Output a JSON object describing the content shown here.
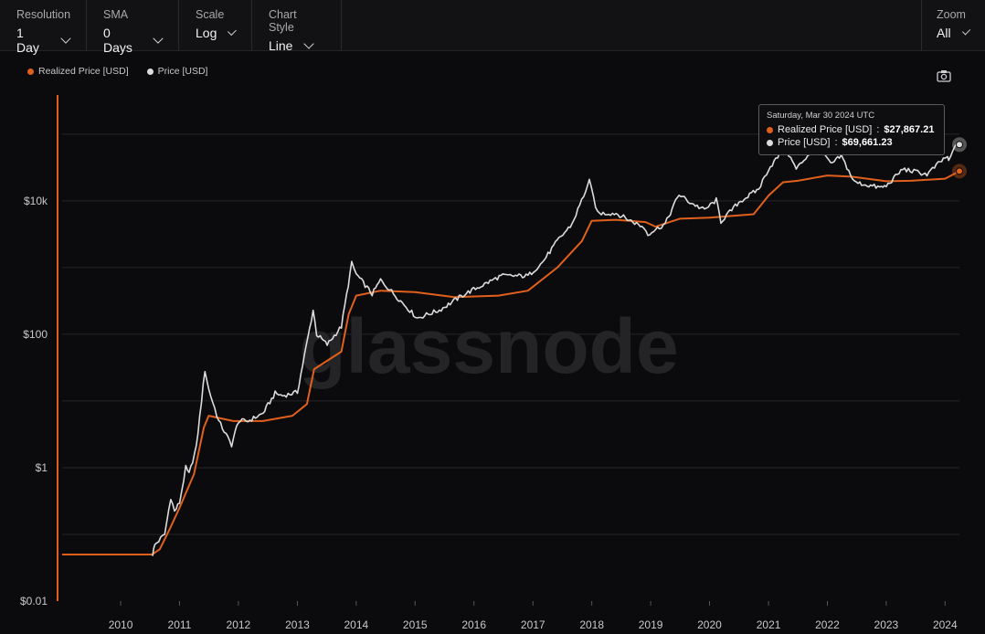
{
  "toolbar": {
    "resolution": {
      "label": "Resolution",
      "value": "1 Day"
    },
    "sma": {
      "label": "SMA",
      "value": "0 Days"
    },
    "scale": {
      "label": "Scale",
      "value": "Log"
    },
    "chart_style": {
      "label": "Chart Style",
      "value": "Line"
    },
    "zoom": {
      "label": "Zoom",
      "value": "All"
    }
  },
  "watermark": "glassnode",
  "icons": {
    "camera": "camera-icon",
    "chevron": "chevron-down-icon"
  },
  "colors": {
    "realized": "#e0601c",
    "price": "#dcdcdc",
    "background": "#0b0b0d"
  },
  "tooltip": {
    "date": "Saturday, Mar 30 2024 UTC",
    "realized_label": "Realized Price [USD]",
    "realized_value": "$27,867.21",
    "price_label": "Price [USD]",
    "price_value": "$69,661.23"
  },
  "chart_data": {
    "type": "line",
    "title": "",
    "xlabel": "",
    "ylabel": "",
    "yscale": "log",
    "ylim": [
      0.01,
      300000
    ],
    "xlim": [
      "2009-01-03",
      "2024-03-30"
    ],
    "y_ticks": [
      {
        "value": 0.01,
        "label": "$0.01"
      },
      {
        "value": 1,
        "label": "$1"
      },
      {
        "value": 100,
        "label": "$100"
      },
      {
        "value": 10000,
        "label": "$10k"
      }
    ],
    "x_ticks": [
      "2010",
      "2011",
      "2012",
      "2013",
      "2014",
      "2015",
      "2016",
      "2017",
      "2018",
      "2019",
      "2020",
      "2021",
      "2022",
      "2023",
      "2024"
    ],
    "legend": "top-left",
    "grid": "horizontal",
    "series": [
      {
        "name": "Realized Price [USD]",
        "color": "#e0601c",
        "points": [
          [
            "2009-01-03",
            0.05
          ],
          [
            "2010-07-15",
            0.05
          ],
          [
            "2010-09-01",
            0.06
          ],
          [
            "2010-11-01",
            0.12
          ],
          [
            "2011-01-01",
            0.25
          ],
          [
            "2011-04-01",
            0.8
          ],
          [
            "2011-06-01",
            4.0
          ],
          [
            "2011-07-01",
            6.0
          ],
          [
            "2011-12-01",
            5.0
          ],
          [
            "2012-06-01",
            5.0
          ],
          [
            "2012-12-01",
            6.0
          ],
          [
            "2013-03-01",
            9.0
          ],
          [
            "2013-04-15",
            30.0
          ],
          [
            "2013-10-01",
            55.0
          ],
          [
            "2013-11-15",
            200.0
          ],
          [
            "2014-01-01",
            380.0
          ],
          [
            "2014-06-01",
            450.0
          ],
          [
            "2015-01-01",
            430.0
          ],
          [
            "2015-09-01",
            360.0
          ],
          [
            "2016-06-01",
            380.0
          ],
          [
            "2016-12-01",
            450.0
          ],
          [
            "2017-06-01",
            1000.0
          ],
          [
            "2017-11-01",
            2500.0
          ],
          [
            "2017-12-31",
            5000.0
          ],
          [
            "2018-06-01",
            5200.0
          ],
          [
            "2018-12-01",
            4800.0
          ],
          [
            "2019-02-01",
            4100.0
          ],
          [
            "2019-07-01",
            5400.0
          ],
          [
            "2020-01-01",
            5600.0
          ],
          [
            "2020-10-01",
            6300.0
          ],
          [
            "2021-01-01",
            12000.0
          ],
          [
            "2021-04-01",
            19000.0
          ],
          [
            "2021-07-01",
            20000.0
          ],
          [
            "2022-01-01",
            24000.0
          ],
          [
            "2022-06-01",
            23000.0
          ],
          [
            "2023-01-01",
            19700.0
          ],
          [
            "2023-06-01",
            20000.0
          ],
          [
            "2024-01-01",
            21500.0
          ],
          [
            "2024-03-30",
            27867.21
          ]
        ]
      },
      {
        "name": "Price [USD]",
        "color": "#dcdcdc",
        "points": [
          [
            "2010-07-18",
            0.05
          ],
          [
            "2010-08-01",
            0.07
          ],
          [
            "2010-10-01",
            0.1
          ],
          [
            "2010-11-08",
            0.36
          ],
          [
            "2010-12-01",
            0.22
          ],
          [
            "2011-01-01",
            0.3
          ],
          [
            "2011-02-09",
            1.0
          ],
          [
            "2011-03-01",
            0.8
          ],
          [
            "2011-04-15",
            2.0
          ],
          [
            "2011-06-08",
            29.0
          ],
          [
            "2011-07-01",
            15.0
          ],
          [
            "2011-09-01",
            5.0
          ],
          [
            "2011-11-20",
            2.2
          ],
          [
            "2012-01-01",
            5.0
          ],
          [
            "2012-03-01",
            5.0
          ],
          [
            "2012-06-01",
            6.5
          ],
          [
            "2012-08-16",
            13.0
          ],
          [
            "2012-10-01",
            12.0
          ],
          [
            "2013-01-01",
            13.5
          ],
          [
            "2013-04-09",
            230.0
          ],
          [
            "2013-05-01",
            100.0
          ],
          [
            "2013-07-05",
            70.0
          ],
          [
            "2013-10-01",
            130.0
          ],
          [
            "2013-12-04",
            1150.0
          ],
          [
            "2014-01-01",
            800.0
          ],
          [
            "2014-04-10",
            400.0
          ],
          [
            "2014-06-01",
            650.0
          ],
          [
            "2015-01-14",
            175.0
          ],
          [
            "2015-06-01",
            230.0
          ],
          [
            "2015-11-04",
            400.0
          ],
          [
            "2016-06-17",
            750.0
          ],
          [
            "2016-12-01",
            750.0
          ],
          [
            "2017-03-01",
            1200.0
          ],
          [
            "2017-06-01",
            2500.0
          ],
          [
            "2017-09-01",
            4500.0
          ],
          [
            "2017-12-17",
            19500.0
          ],
          [
            "2018-02-06",
            6500.0
          ],
          [
            "2018-06-01",
            6500.0
          ],
          [
            "2018-11-20",
            4000.0
          ],
          [
            "2018-12-15",
            3200.0
          ],
          [
            "2019-04-01",
            4500.0
          ],
          [
            "2019-06-26",
            12500.0
          ],
          [
            "2019-09-01",
            9500.0
          ],
          [
            "2019-12-01",
            7300.0
          ],
          [
            "2020-02-12",
            10300.0
          ],
          [
            "2020-03-12",
            4900.0
          ],
          [
            "2020-07-01",
            9500.0
          ],
          [
            "2020-11-01",
            15000.0
          ],
          [
            "2021-01-01",
            30000.0
          ],
          [
            "2021-04-14",
            63000.0
          ],
          [
            "2021-06-22",
            30000.0
          ],
          [
            "2021-09-01",
            48000.0
          ],
          [
            "2021-11-10",
            68000.0
          ],
          [
            "2022-01-22",
            35000.0
          ],
          [
            "2022-03-28",
            47000.0
          ],
          [
            "2022-06-18",
            19000.0
          ],
          [
            "2022-11-21",
            15800.0
          ],
          [
            "2023-01-01",
            16600.0
          ],
          [
            "2023-04-14",
            30000.0
          ],
          [
            "2023-09-11",
            25000.0
          ],
          [
            "2023-12-01",
            38000.0
          ],
          [
            "2024-01-11",
            46000.0
          ],
          [
            "2024-01-23",
            39500.0
          ],
          [
            "2024-03-14",
            73000.0
          ],
          [
            "2024-03-30",
            69661.23
          ]
        ]
      }
    ]
  }
}
